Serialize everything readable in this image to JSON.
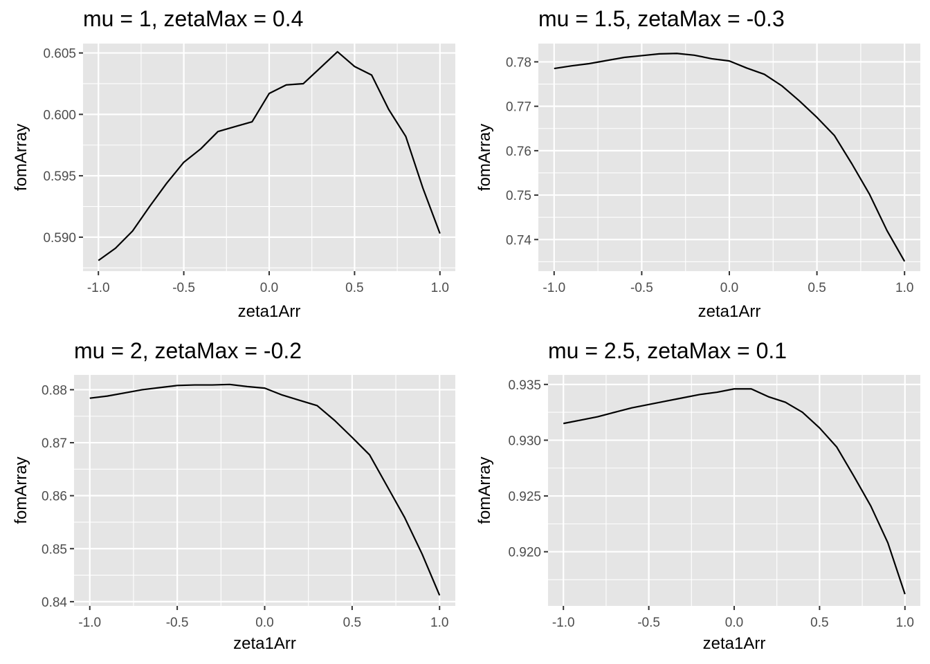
{
  "chart_data": [
    {
      "type": "line",
      "title": "mu = 1, zetaMax = 0.4",
      "xlabel": "zeta1Arr",
      "ylabel": "fomArray",
      "xlim": [
        -1.0,
        1.0
      ],
      "ylim": [
        0.588,
        0.605
      ],
      "xticks": [
        -1.0,
        -0.5,
        0.0,
        0.5,
        1.0
      ],
      "xtick_labels": [
        "-1.0",
        "-0.5",
        "0.0",
        "0.5",
        "1.0"
      ],
      "yticks": [
        0.59,
        0.595,
        0.6,
        0.605
      ],
      "ytick_labels": [
        "0.590",
        "0.595",
        "0.600",
        "0.605"
      ],
      "grid": true,
      "x": [
        -1.0,
        -0.9,
        -0.8,
        -0.7,
        -0.6,
        -0.5,
        -0.4,
        -0.3,
        -0.2,
        -0.1,
        0.0,
        0.1,
        0.2,
        0.3,
        0.4,
        0.5,
        0.6,
        0.7,
        0.8,
        0.9,
        1.0
      ],
      "y": [
        0.5881,
        0.5891,
        0.5905,
        0.5925,
        0.5944,
        0.5961,
        0.5972,
        0.5986,
        0.599,
        0.5994,
        0.6017,
        0.6024,
        0.6025,
        0.6038,
        0.6051,
        0.6039,
        0.6032,
        0.6004,
        0.5982,
        0.594,
        0.5903
      ]
    },
    {
      "type": "line",
      "title": "mu = 1.5, zetaMax = -0.3",
      "xlabel": "zeta1Arr",
      "ylabel": "fomArray",
      "xlim": [
        -1.0,
        1.0
      ],
      "ylim": [
        0.735,
        0.782
      ],
      "xticks": [
        -1.0,
        -0.5,
        0.0,
        0.5,
        1.0
      ],
      "xtick_labels": [
        "-1.0",
        "-0.5",
        "0.0",
        "0.5",
        "1.0"
      ],
      "yticks": [
        0.74,
        0.75,
        0.76,
        0.77,
        0.78
      ],
      "ytick_labels": [
        "0.74",
        "0.75",
        "0.76",
        "0.77",
        "0.78"
      ],
      "grid": true,
      "x": [
        -1.0,
        -0.9,
        -0.8,
        -0.7,
        -0.6,
        -0.5,
        -0.4,
        -0.3,
        -0.2,
        -0.1,
        0.0,
        0.1,
        0.2,
        0.3,
        0.4,
        0.5,
        0.6,
        0.7,
        0.8,
        0.9,
        1.0
      ],
      "y": [
        0.7785,
        0.7791,
        0.7796,
        0.7803,
        0.781,
        0.7814,
        0.7818,
        0.7819,
        0.7815,
        0.7807,
        0.7802,
        0.7786,
        0.7772,
        0.7746,
        0.7712,
        0.7675,
        0.7634,
        0.757,
        0.7502,
        0.742,
        0.7351
      ]
    },
    {
      "type": "line",
      "title": "mu = 2, zetaMax = -0.2",
      "xlabel": "zeta1Arr",
      "ylabel": "fomArray",
      "xlim": [
        -1.0,
        1.0
      ],
      "ylim": [
        0.841,
        0.881
      ],
      "xticks": [
        -1.0,
        -0.5,
        0.0,
        0.5,
        1.0
      ],
      "xtick_labels": [
        "-1.0",
        "-0.5",
        "0.0",
        "0.5",
        "1.0"
      ],
      "yticks": [
        0.84,
        0.85,
        0.86,
        0.87,
        0.88
      ],
      "ytick_labels": [
        "0.84",
        "0.85",
        "0.86",
        "0.87",
        "0.88"
      ],
      "grid": true,
      "x": [
        -1.0,
        -0.9,
        -0.8,
        -0.7,
        -0.6,
        -0.5,
        -0.4,
        -0.3,
        -0.2,
        -0.1,
        0.0,
        0.1,
        0.2,
        0.3,
        0.4,
        0.5,
        0.6,
        0.7,
        0.8,
        0.9,
        1.0
      ],
      "y": [
        0.8784,
        0.8788,
        0.8794,
        0.88,
        0.8804,
        0.8808,
        0.8809,
        0.8809,
        0.881,
        0.8806,
        0.8803,
        0.879,
        0.878,
        0.877,
        0.8742,
        0.871,
        0.8677,
        0.8618,
        0.8559,
        0.849,
        0.8412
      ]
    },
    {
      "type": "line",
      "title": "mu = 2.5, zetaMax = 0.1",
      "xlabel": "zeta1Arr",
      "ylabel": "fomArray",
      "xlim": [
        -1.0,
        1.0
      ],
      "ylim": [
        0.916,
        0.935
      ],
      "xticks": [
        -1.0,
        -0.5,
        0.0,
        0.5,
        1.0
      ],
      "xtick_labels": [
        "-1.0",
        "-0.5",
        "0.0",
        "0.5",
        "1.0"
      ],
      "yticks": [
        0.92,
        0.925,
        0.93,
        0.935
      ],
      "ytick_labels": [
        "0.920",
        "0.925",
        "0.930",
        "0.935"
      ],
      "grid": true,
      "x": [
        -1.0,
        -0.9,
        -0.8,
        -0.7,
        -0.6,
        -0.5,
        -0.4,
        -0.3,
        -0.2,
        -0.1,
        0.0,
        0.1,
        0.2,
        0.3,
        0.4,
        0.5,
        0.6,
        0.7,
        0.8,
        0.9,
        1.0
      ],
      "y": [
        0.9315,
        0.9318,
        0.9321,
        0.9325,
        0.9329,
        0.9332,
        0.9335,
        0.9338,
        0.9341,
        0.9343,
        0.9346,
        0.9346,
        0.9339,
        0.9334,
        0.9325,
        0.9311,
        0.9294,
        0.9268,
        0.9241,
        0.9208,
        0.9162
      ]
    }
  ]
}
